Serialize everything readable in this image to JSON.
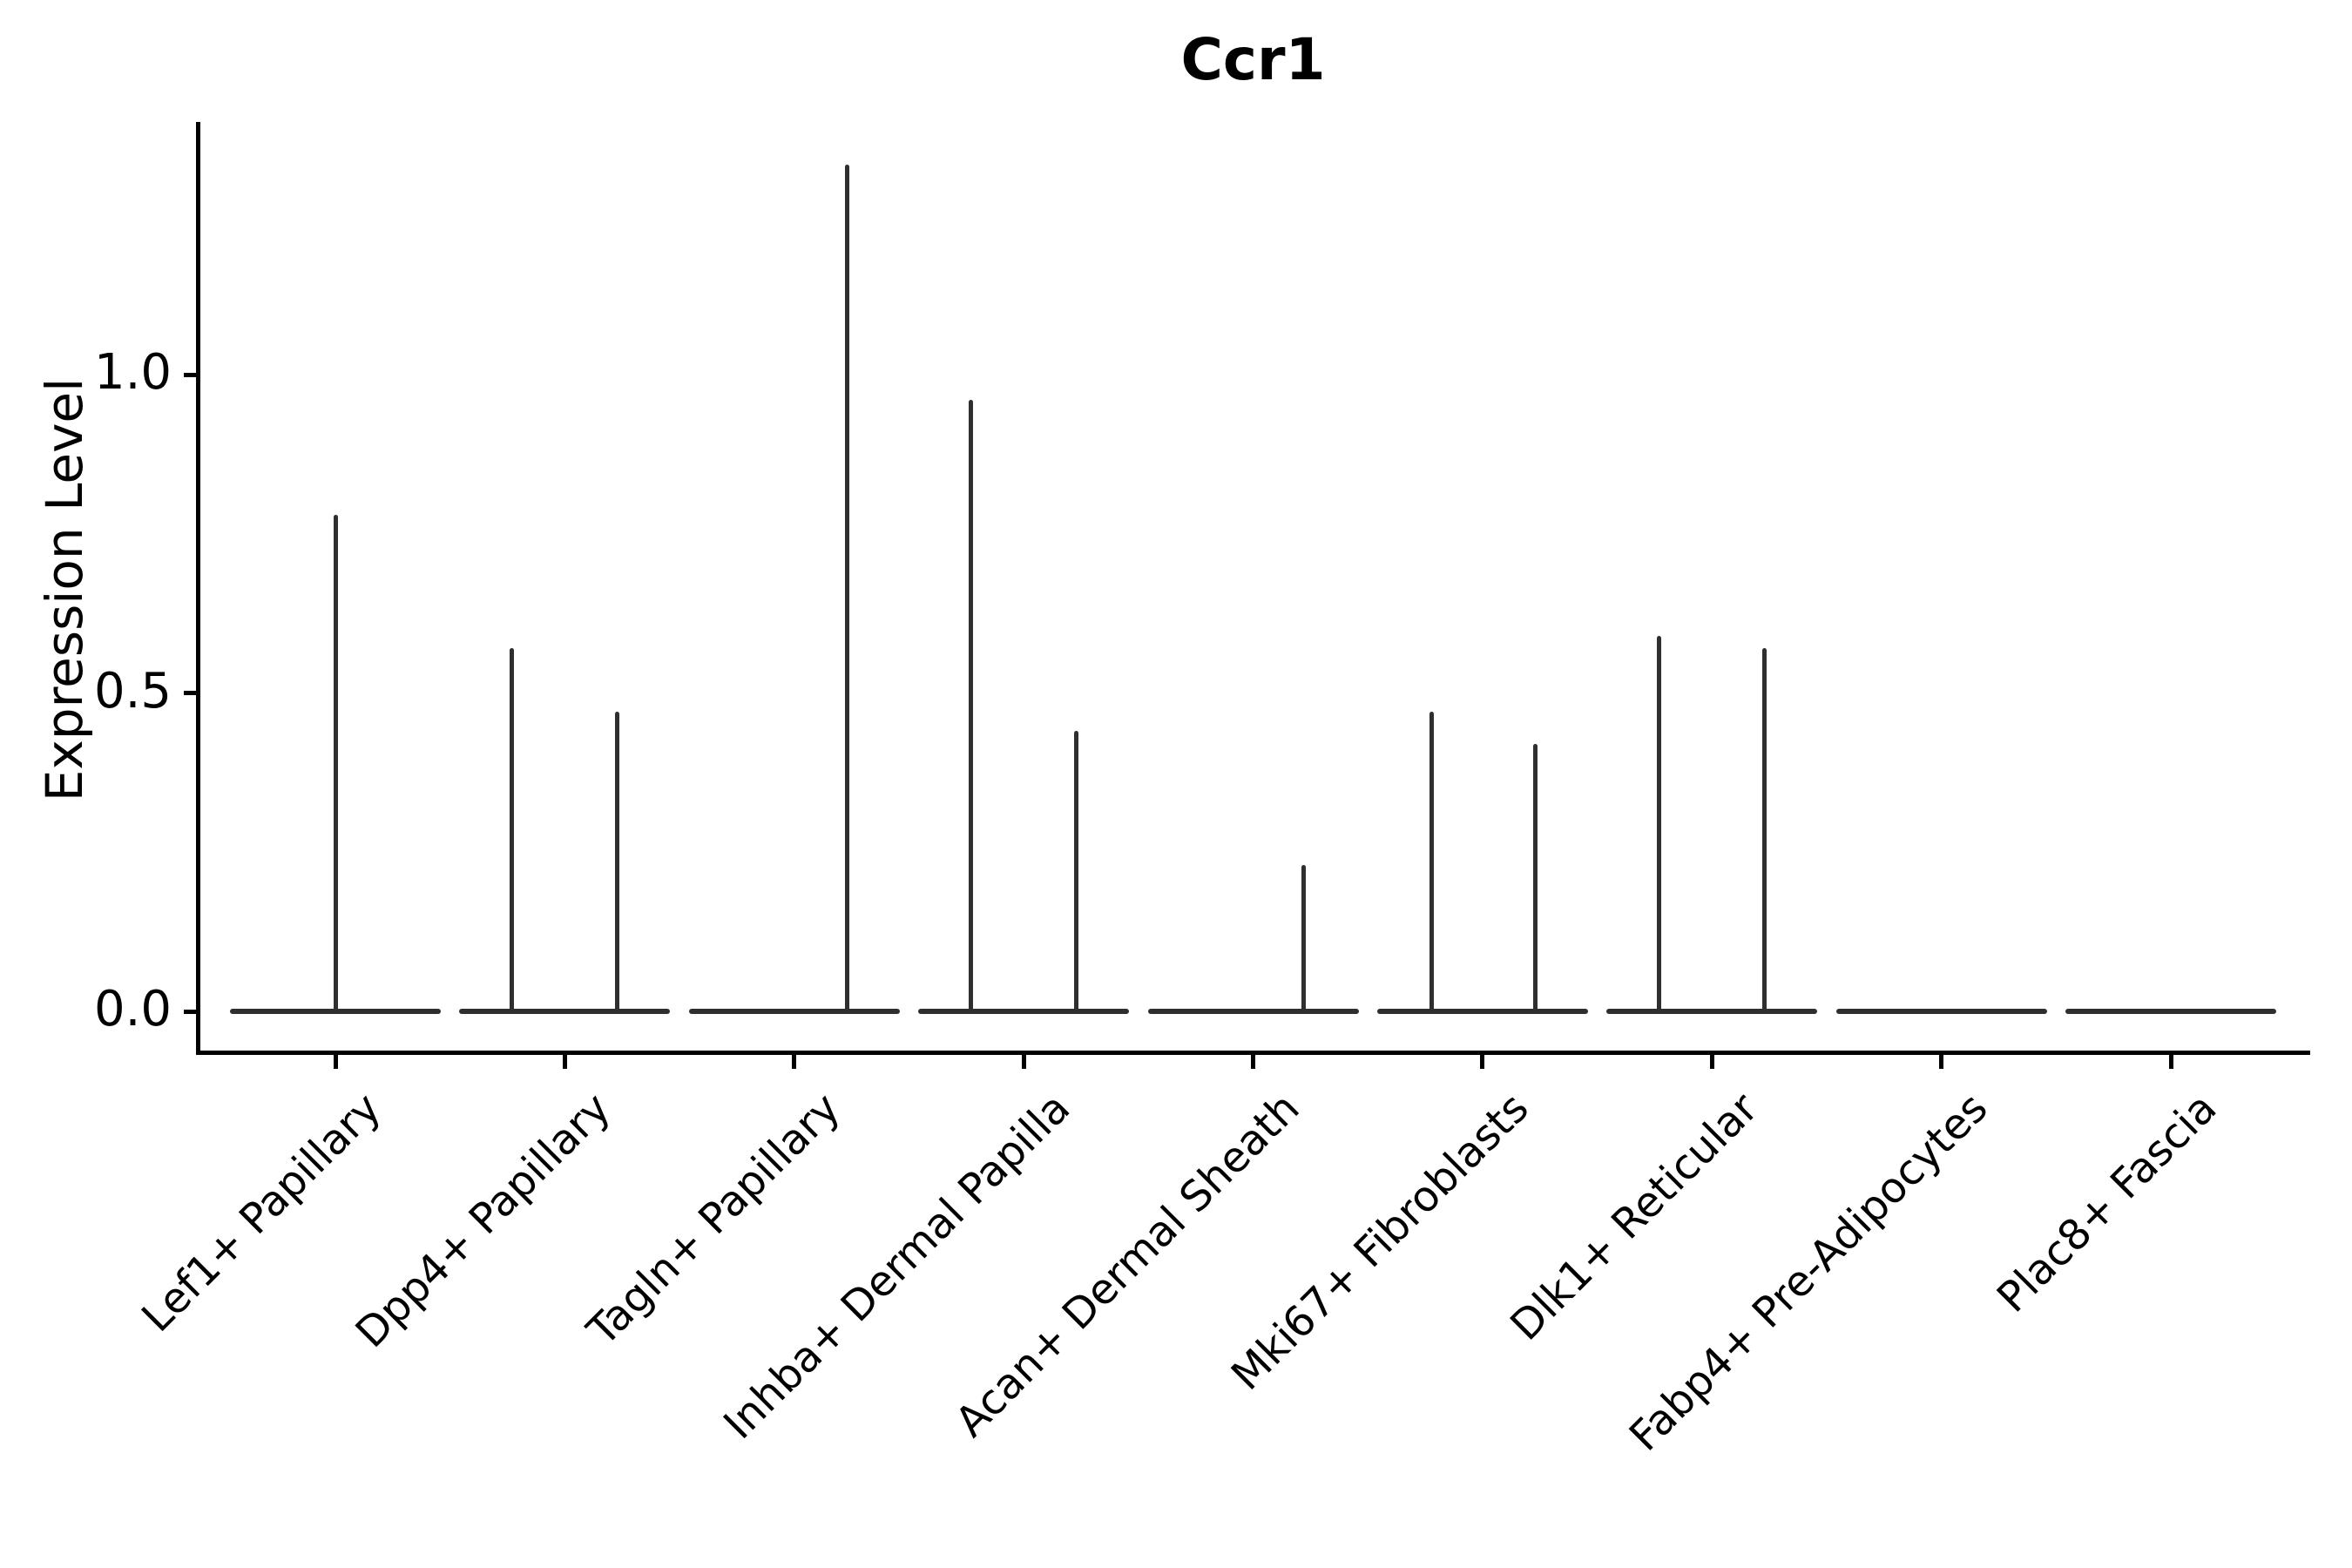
{
  "title": "Ccr1",
  "y_axis": {
    "label": "Expression Level",
    "tick_labels": [
      "0.0",
      "0.5",
      "1.0"
    ]
  },
  "chart_data": {
    "type": "violin",
    "title": "Ccr1",
    "xlabel": "",
    "ylabel": "Expression Level",
    "categories": [
      "Lef1+ Papillary",
      "Dpp4+ Papillary",
      "Tagln+ Papillary",
      "Inhba+ Dermal Papilla",
      "Acan+ Dermal Sheath",
      "Mki67+ Fibroblasts",
      "Dlk1+ Reticular",
      "Fabp4+ Pre-Adipocytes",
      "Plac8+ Fascia"
    ],
    "yticks": [
      0.0,
      0.5,
      1.0
    ],
    "ylim": [
      -0.06,
      1.4
    ],
    "grid": false,
    "legend_position": "none",
    "violin_width_fraction": 0.92,
    "series": [
      {
        "category": "Lef1+ Papillary",
        "baseline_value": 0,
        "spikes": [
          {
            "offset": 0.0,
            "max": 0.78
          }
        ]
      },
      {
        "category": "Dpp4+ Papillary",
        "baseline_value": 0,
        "spikes": [
          {
            "offset": -0.23,
            "max": 0.57
          },
          {
            "offset": 0.23,
            "max": 0.47
          }
        ]
      },
      {
        "category": "Tagln+ Papillary",
        "baseline_value": 0,
        "spikes": [
          {
            "offset": 0.23,
            "max": 1.33
          }
        ]
      },
      {
        "category": "Inhba+ Dermal Papilla",
        "baseline_value": 0,
        "spikes": [
          {
            "offset": -0.23,
            "max": 0.96
          },
          {
            "offset": 0.23,
            "max": 0.44
          }
        ]
      },
      {
        "category": "Acan+ Dermal Sheath",
        "baseline_value": 0,
        "spikes": [
          {
            "offset": 0.22,
            "max": 0.23
          }
        ]
      },
      {
        "category": "Mki67+ Fibroblasts",
        "baseline_value": 0,
        "spikes": [
          {
            "offset": -0.22,
            "max": 0.47
          },
          {
            "offset": 0.23,
            "max": 0.42
          }
        ]
      },
      {
        "category": "Dlk1+ Reticular",
        "baseline_value": 0,
        "spikes": [
          {
            "offset": -0.23,
            "max": 0.59
          },
          {
            "offset": 0.23,
            "max": 0.57
          }
        ]
      },
      {
        "category": "Fabp4+ Pre-Adipocytes",
        "baseline_value": 0,
        "spikes": []
      },
      {
        "category": "Plac8+ Fascia",
        "baseline_value": 0,
        "spikes": []
      }
    ],
    "colors": {
      "violin_line": "#2f2f2f",
      "axis": "#000000",
      "text": "#000000",
      "background": "#ffffff"
    }
  }
}
